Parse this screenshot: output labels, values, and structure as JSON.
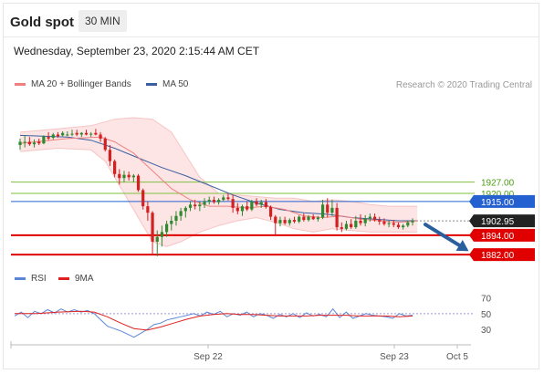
{
  "header": {
    "title": "Gold spot",
    "timeframe": "30 MIN",
    "datetime": "Wednesday, September 23, 2020 2:15:44 AM CET",
    "credit": "Research © 2020 Trading Central"
  },
  "legend": {
    "ma20_label": "MA 20 + Bollinger Bands",
    "ma50_label": "MA 50",
    "rsi_label": "RSI",
    "rsi_ma_label": "9MA"
  },
  "colors": {
    "candle_up": "#2f8a2f",
    "candle_down": "#d32020",
    "ma20": "#f08080",
    "bollinger_fill": "#fde0e0",
    "ma50": "#3b5fa0",
    "rsi": "#5b86d6",
    "rsi_ma": "#e02020",
    "support": "#e00000",
    "resistance": "#7fbf3f",
    "pivot": "#2560d0",
    "last_price_bg": "#222222",
    "forecast_arrow": "#2a5f9e"
  },
  "chart_data": [
    {
      "type": "candlestick",
      "title": "",
      "ylim": [
        1873,
        1980
      ],
      "x_tick_labels": [
        "Sep 22",
        "Sep 23",
        "Oct 5"
      ],
      "indicators": [
        "MA 20 + Bollinger Bands",
        "MA 50"
      ],
      "levels": [
        {
          "label": "1927.00",
          "value": 1927.0,
          "kind": "resistance"
        },
        {
          "label": "1920.00",
          "value": 1920.0,
          "kind": "resistance"
        },
        {
          "label": "1915.00",
          "value": 1915.0,
          "kind": "pivot"
        },
        {
          "label": "1902.95",
          "value": 1902.95,
          "kind": "last"
        },
        {
          "label": "1894.00",
          "value": 1894.0,
          "kind": "support"
        },
        {
          "label": "1882.00",
          "value": 1882.0,
          "kind": "support"
        }
      ],
      "candles": [
        [
          1950.0,
          1954.0,
          1947.0,
          1952.0
        ],
        [
          1951.5,
          1956.0,
          1948.5,
          1952.0
        ],
        [
          1952.0,
          1955.0,
          1949.5,
          1950.5
        ],
        [
          1950.5,
          1953.5,
          1948.5,
          1951.5
        ],
        [
          1952.0,
          1954.0,
          1950.0,
          1951.0
        ],
        [
          1951.0,
          1956.0,
          1950.5,
          1955.5
        ],
        [
          1955.0,
          1958.0,
          1953.0,
          1954.0
        ],
        [
          1954.5,
          1957.5,
          1953.5,
          1956.5
        ],
        [
          1956.5,
          1958.0,
          1954.5,
          1955.5
        ],
        [
          1956.0,
          1958.5,
          1955.5,
          1957.5
        ],
        [
          1956.5,
          1958.5,
          1955.5,
          1956.5
        ],
        [
          1956.5,
          1959.5,
          1955.5,
          1957.0
        ],
        [
          1957.5,
          1959.5,
          1955.5,
          1956.5
        ],
        [
          1956.5,
          1958.0,
          1955.0,
          1957.5
        ],
        [
          1957.5,
          1959.5,
          1956.0,
          1956.5
        ],
        [
          1956.5,
          1958.0,
          1955.0,
          1957.0
        ],
        [
          1957.5,
          1960.0,
          1956.0,
          1956.5
        ],
        [
          1956.5,
          1958.0,
          1952.0,
          1954.0
        ],
        [
          1954.0,
          1955.0,
          1946.0,
          1947.0
        ],
        [
          1947.0,
          1950.0,
          1937.0,
          1940.0
        ],
        [
          1940.0,
          1941.0,
          1930.0,
          1932.0
        ],
        [
          1932.0,
          1935.0,
          1925.5,
          1929.5
        ],
        [
          1929.5,
          1934.0,
          1927.0,
          1931.5
        ],
        [
          1931.5,
          1933.5,
          1928.0,
          1930.0
        ],
        [
          1930.0,
          1932.0,
          1927.0,
          1931.0
        ],
        [
          1931.0,
          1932.0,
          1921.0,
          1922.0
        ],
        [
          1922.0,
          1923.0,
          1910.0,
          1912.0
        ],
        [
          1912.0,
          1915.0,
          1903.0,
          1908.0
        ],
        [
          1908.0,
          1909.0,
          1882.0,
          1890.0
        ],
        [
          1890.0,
          1897.0,
          1881.0,
          1893.0
        ],
        [
          1893.0,
          1900.0,
          1887.0,
          1896.0
        ],
        [
          1896.0,
          1903.0,
          1893.0,
          1901.0
        ],
        [
          1901.0,
          1906.0,
          1897.0,
          1903.0
        ],
        [
          1903.0,
          1909.0,
          1900.0,
          1906.0
        ],
        [
          1906.0,
          1911.0,
          1903.0,
          1909.0
        ],
        [
          1909.0,
          1912.0,
          1905.0,
          1911.0
        ],
        [
          1911.0,
          1915.0,
          1909.0,
          1913.0
        ],
        [
          1913.0,
          1916.0,
          1910.0,
          1912.0
        ],
        [
          1912.0,
          1915.0,
          1909.0,
          1913.0
        ],
        [
          1913.0,
          1917.0,
          1911.0,
          1915.0
        ],
        [
          1915.0,
          1918.0,
          1913.0,
          1916.0
        ],
        [
          1916.0,
          1918.0,
          1913.5,
          1914.5
        ],
        [
          1914.5,
          1917.0,
          1913.0,
          1916.0
        ],
        [
          1916.0,
          1919.0,
          1915.0,
          1917.5
        ],
        [
          1917.5,
          1920.0,
          1915.5,
          1916.5
        ],
        [
          1916.5,
          1919.0,
          1908.0,
          1911.0
        ],
        [
          1911.0,
          1914.0,
          1907.0,
          1909.0
        ],
        [
          1909.0,
          1913.0,
          1906.0,
          1912.0
        ],
        [
          1912.0,
          1915.0,
          1909.0,
          1910.0
        ],
        [
          1910.0,
          1916.0,
          1909.0,
          1915.0
        ],
        [
          1915.0,
          1917.0,
          1912.0,
          1913.0
        ],
        [
          1913.0,
          1916.0,
          1911.0,
          1914.5
        ],
        [
          1914.5,
          1916.5,
          1910.5,
          1911.5
        ],
        [
          1911.5,
          1912.5,
          1903.5,
          1905.5
        ],
        [
          1905.5,
          1906.5,
          1894.5,
          1901.5
        ],
        [
          1901.5,
          1905.5,
          1899.5,
          1903.5
        ],
        [
          1903.5,
          1905.5,
          1900.5,
          1901.5
        ],
        [
          1901.5,
          1904.5,
          1900.0,
          1903.5
        ],
        [
          1903.5,
          1905.5,
          1901.5,
          1902.5
        ],
        [
          1902.5,
          1906.5,
          1901.5,
          1905.5
        ],
        [
          1905.5,
          1907.5,
          1902.5,
          1903.5
        ],
        [
          1903.5,
          1906.5,
          1902.5,
          1905.5
        ],
        [
          1905.5,
          1907.0,
          1903.5,
          1904.0
        ],
        [
          1904.0,
          1906.0,
          1902.5,
          1905.0
        ],
        [
          1905.0,
          1916.0,
          1904.0,
          1913.0
        ],
        [
          1913.0,
          1917.0,
          1905.0,
          1908.0
        ],
        [
          1908.0,
          1916.0,
          1906.0,
          1911.0
        ],
        [
          1911.0,
          1914.0,
          1897.0,
          1899.0
        ],
        [
          1899.0,
          1902.0,
          1896.0,
          1898.0
        ],
        [
          1898.0,
          1903.0,
          1897.0,
          1901.0
        ],
        [
          1901.0,
          1904.0,
          1898.0,
          1899.0
        ],
        [
          1899.0,
          1906.0,
          1898.0,
          1903.0
        ],
        [
          1903.0,
          1907.0,
          1900.0,
          1901.5
        ],
        [
          1901.5,
          1906.5,
          1899.5,
          1904.5
        ],
        [
          1904.5,
          1907.5,
          1902.5,
          1905.5
        ],
        [
          1905.5,
          1907.5,
          1902.5,
          1903.5
        ],
        [
          1903.5,
          1905.5,
          1900.5,
          1902.5
        ],
        [
          1902.5,
          1904.5,
          1900.0,
          1901.0
        ],
        [
          1901.0,
          1903.0,
          1899.0,
          1901.5
        ],
        [
          1901.5,
          1903.5,
          1899.0,
          1900.5
        ],
        [
          1900.5,
          1902.0,
          1898.0,
          1899.0
        ],
        [
          1899.0,
          1901.0,
          1897.5,
          1900.0
        ],
        [
          1900.0,
          1903.0,
          1899.0,
          1902.0
        ],
        [
          1902.0,
          1904.5,
          1900.0,
          1902.95
        ]
      ],
      "ma20": [
        [
          0,
          1951
        ],
        [
          10,
          1954
        ],
        [
          17,
          1955
        ],
        [
          20,
          1952
        ],
        [
          24,
          1945
        ],
        [
          28,
          1934
        ],
        [
          32,
          1923
        ],
        [
          36,
          1916
        ],
        [
          40,
          1912
        ],
        [
          44,
          1912
        ],
        [
          48,
          1911
        ],
        [
          52,
          1912
        ],
        [
          56,
          1910
        ],
        [
          60,
          1906
        ],
        [
          64,
          1905
        ],
        [
          68,
          1906
        ],
        [
          72,
          1904
        ],
        [
          76,
          1903
        ],
        [
          80,
          1902
        ],
        [
          84,
          1902.95
        ]
      ],
      "ma50": [
        [
          0,
          1956
        ],
        [
          10,
          1955
        ],
        [
          15,
          1953
        ],
        [
          20,
          1948
        ],
        [
          25,
          1942
        ],
        [
          30,
          1936
        ],
        [
          35,
          1931
        ],
        [
          40,
          1925
        ],
        [
          45,
          1919
        ],
        [
          50,
          1914
        ],
        [
          55,
          1910
        ],
        [
          60,
          1908
        ],
        [
          65,
          1907
        ],
        [
          70,
          1905
        ],
        [
          75,
          1904
        ],
        [
          80,
          1903
        ],
        [
          84,
          1903
        ]
      ],
      "bollinger_upper": [
        [
          0,
          1958
        ],
        [
          8,
          1960
        ],
        [
          15,
          1962
        ],
        [
          20,
          1966
        ],
        [
          24,
          1967
        ],
        [
          28,
          1966
        ],
        [
          32,
          1958
        ],
        [
          35,
          1944
        ],
        [
          38,
          1930
        ],
        [
          42,
          1920
        ],
        [
          46,
          1919
        ],
        [
          50,
          1918
        ],
        [
          54,
          1917
        ],
        [
          58,
          1917
        ],
        [
          62,
          1915
        ],
        [
          66,
          1916
        ],
        [
          70,
          1915
        ],
        [
          74,
          1913
        ],
        [
          78,
          1912
        ],
        [
          84,
          1912
        ]
      ],
      "bollinger_lower": [
        [
          0,
          1946
        ],
        [
          8,
          1948
        ],
        [
          15,
          1947
        ],
        [
          18,
          1940
        ],
        [
          21,
          1925
        ],
        [
          25,
          1905
        ],
        [
          28,
          1890
        ],
        [
          31,
          1887
        ],
        [
          34,
          1890
        ],
        [
          38,
          1896
        ],
        [
          42,
          1900
        ],
        [
          46,
          1903
        ],
        [
          50,
          1905
        ],
        [
          54,
          1902
        ],
        [
          58,
          1898
        ],
        [
          62,
          1896
        ],
        [
          66,
          1898
        ],
        [
          70,
          1897
        ],
        [
          74,
          1896
        ],
        [
          78,
          1896
        ],
        [
          84,
          1896
        ]
      ]
    },
    {
      "type": "line",
      "title": "",
      "ylim": [
        15,
        80
      ],
      "y_tick_labels": [
        "70",
        "50",
        "30"
      ],
      "y_ticks": [
        70,
        50,
        30
      ],
      "series": [
        {
          "name": "RSI",
          "values": [
            [
              0,
              47
            ],
            [
              3,
              52
            ],
            [
              6,
              45
            ],
            [
              9,
              53
            ],
            [
              12,
              50
            ],
            [
              15,
              55
            ],
            [
              18,
              51
            ],
            [
              21,
              56
            ],
            [
              24,
              52
            ],
            [
              27,
              55
            ],
            [
              30,
              52
            ],
            [
              33,
              54
            ],
            [
              36,
              50
            ],
            [
              39,
              42
            ],
            [
              42,
              34
            ],
            [
              45,
              31
            ],
            [
              48,
              28
            ],
            [
              51,
              24
            ],
            [
              54,
              20
            ],
            [
              57,
              25
            ],
            [
              60,
              30
            ],
            [
              63,
              36
            ],
            [
              66,
              38
            ],
            [
              69,
              42
            ],
            [
              72,
              44
            ],
            [
              75,
              46
            ],
            [
              78,
              48
            ],
            [
              81,
              50
            ],
            [
              84,
              47
            ],
            [
              87,
              52
            ],
            [
              90,
              49
            ],
            [
              93,
              53
            ],
            [
              96,
              46
            ],
            [
              99,
              50
            ],
            [
              102,
              48
            ],
            [
              105,
              52
            ],
            [
              108,
              46
            ],
            [
              111,
              50
            ],
            [
              114,
              48
            ],
            [
              117,
              44
            ],
            [
              120,
              49
            ],
            [
              123,
              46
            ],
            [
              126,
              50
            ],
            [
              129,
              45
            ],
            [
              132,
              51
            ],
            [
              135,
              47
            ],
            [
              138,
              49
            ],
            [
              141,
              46
            ],
            [
              144,
              56
            ],
            [
              147,
              45
            ],
            [
              150,
              52
            ],
            [
              153,
              44
            ],
            [
              156,
              47
            ],
            [
              159,
              50
            ],
            [
              162,
              48
            ],
            [
              165,
              47
            ],
            [
              168,
              46
            ],
            [
              171,
              44
            ],
            [
              174,
              50
            ],
            [
              177,
              47
            ],
            [
              180,
              48
            ]
          ]
        },
        {
          "name": "9MA",
          "values": [
            [
              0,
              50
            ],
            [
              10,
              50
            ],
            [
              20,
              52
            ],
            [
              30,
              53
            ],
            [
              36,
              52
            ],
            [
              42,
              46
            ],
            [
              48,
              38
            ],
            [
              54,
              31
            ],
            [
              60,
              29
            ],
            [
              66,
              33
            ],
            [
              72,
              38
            ],
            [
              78,
              43
            ],
            [
              84,
              47
            ],
            [
              90,
              49
            ],
            [
              96,
              50
            ],
            [
              102,
              49
            ],
            [
              108,
              49
            ],
            [
              114,
              48
            ],
            [
              120,
              47
            ],
            [
              126,
              47
            ],
            [
              132,
              47
            ],
            [
              138,
              48
            ],
            [
              144,
              48
            ],
            [
              150,
              48
            ],
            [
              156,
              47
            ],
            [
              162,
              47
            ],
            [
              168,
              47
            ],
            [
              174,
              46
            ],
            [
              180,
              47
            ]
          ]
        }
      ],
      "reference_value": 50
    }
  ]
}
